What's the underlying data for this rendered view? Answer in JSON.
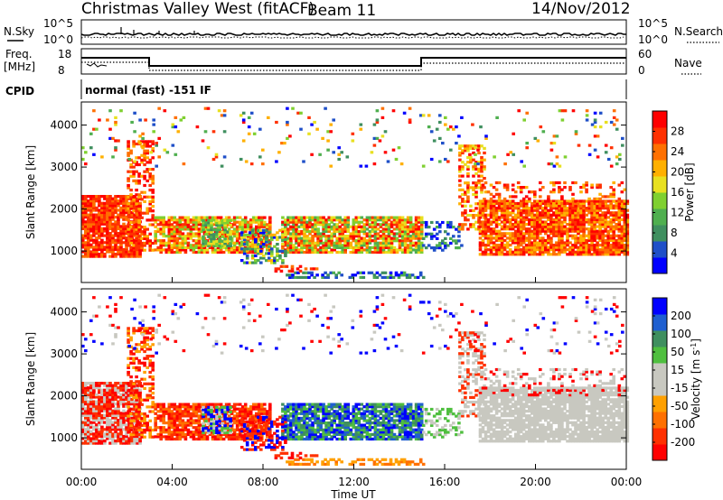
{
  "header": {
    "title": "Christmas Valley West (fitACF)",
    "beam": "Beam 11",
    "date": "14/Nov/2012"
  },
  "panels": {
    "nsky_label": "N.Sky",
    "nsearch_label": "N.Search",
    "count_ticks": [
      "10^5",
      "10^0"
    ],
    "freq_label_1": "Freq.",
    "freq_label_2": "[MHz]",
    "freq_ticks": [
      "18",
      "8"
    ],
    "nave_label": "Nave",
    "nave_ticks": [
      "60",
      "0"
    ],
    "cpid_label": "CPID",
    "cpid_text": "normal (fast) -151 IF"
  },
  "colors": {
    "power": [
      "#0000ff",
      "#1f4fc8",
      "#3f8f5f",
      "#4faf4f",
      "#7fd030",
      "#e8e020",
      "#ffb000",
      "#ff7000",
      "#ff3000",
      "#ff0000"
    ],
    "velocity": [
      "#0000ff",
      "#1f5fd0",
      "#3f8f5f",
      "#4fbf3f",
      "#c8c8c0",
      "#c8c8c0",
      "#ffa000",
      "#ff7000",
      "#ff3000",
      "#ff0000"
    ]
  },
  "chart_data": [
    {
      "type": "heatmap",
      "name": "power",
      "ylabel": "Slant Range [km]",
      "yticks": [
        "1000",
        "2000",
        "3000",
        "4000"
      ],
      "ylim": [
        250,
        4550
      ],
      "xlim_hours": [
        0,
        24
      ],
      "colorbar_label": "Power [dB]",
      "colorbar_ticks": [
        "4",
        "8",
        "12",
        "16",
        "20",
        "24",
        "28"
      ],
      "colorbar_range": [
        0,
        30
      ]
    },
    {
      "type": "heatmap",
      "name": "velocity",
      "ylabel": "Slant Range [km]",
      "yticks": [
        "1000",
        "2000",
        "3000",
        "4000"
      ],
      "ylim": [
        250,
        4550
      ],
      "xlim_hours": [
        0,
        24
      ],
      "colorbar_label": "Velocity [m s^-1]",
      "colorbar_ticks": [
        "200",
        "100",
        "50",
        "15",
        "-15",
        "-50",
        "-100",
        "-200"
      ]
    }
  ],
  "xaxis": {
    "ticks": [
      "00:00",
      "04:00",
      "08:00",
      "12:00",
      "16:00",
      "20:00",
      "00:00"
    ],
    "label": "Time UT"
  }
}
